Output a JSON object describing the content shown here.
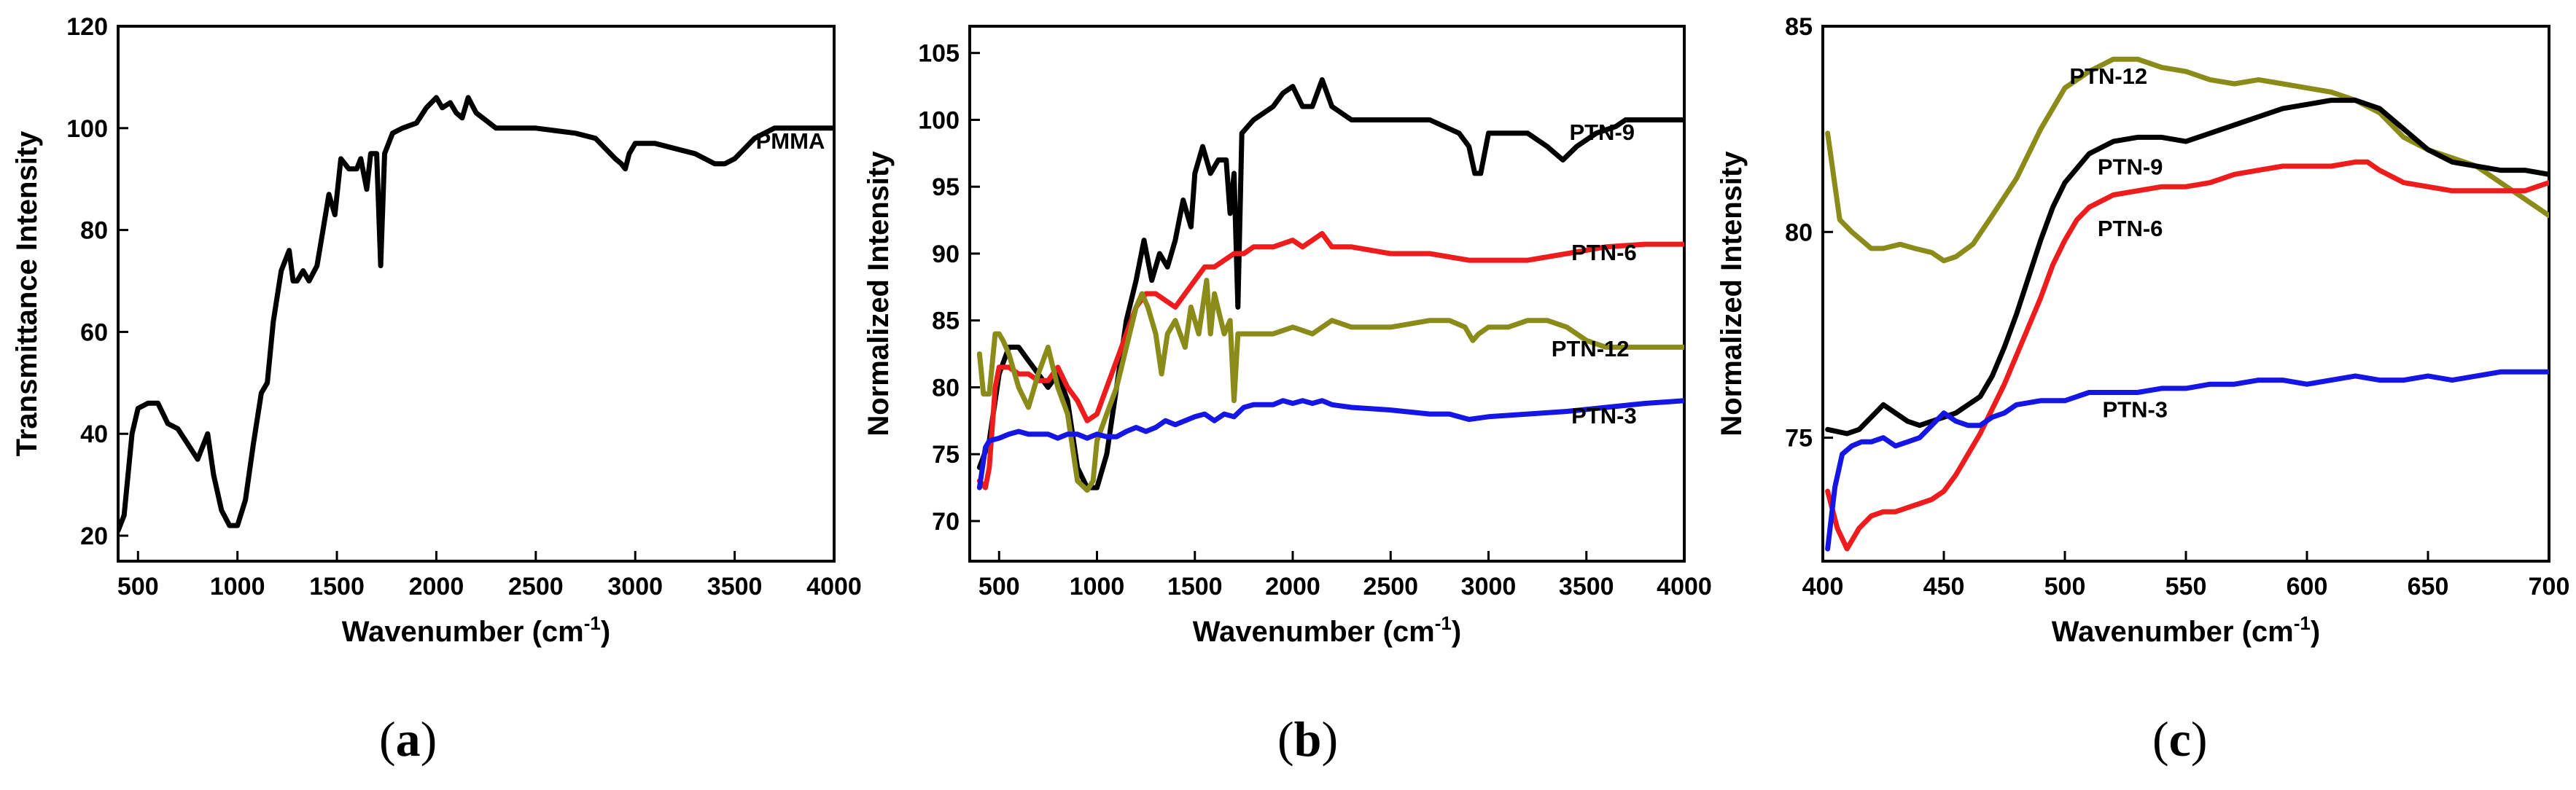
{
  "chart_data": [
    {
      "panel_label": "a",
      "type": "line",
      "xlabel": "Wavenumber (cm",
      "xlabel_sup": "-1",
      "xlabel_close": ")",
      "ylabel": "Transmittance Intensity",
      "xlim": [
        400,
        4000
      ],
      "ylim": [
        15,
        120
      ],
      "xticks": [
        500,
        1000,
        1500,
        2000,
        2500,
        3000,
        3500,
        4000
      ],
      "yticks": [
        20,
        40,
        60,
        80,
        100,
        120
      ],
      "grid": false,
      "series": [
        {
          "name": "PMMA",
          "color": "#000000",
          "label_at": [
            3780,
            96
          ],
          "x": [
            400,
            430,
            470,
            500,
            550,
            600,
            650,
            700,
            750,
            800,
            850,
            880,
            920,
            960,
            1000,
            1040,
            1080,
            1120,
            1150,
            1180,
            1220,
            1260,
            1280,
            1300,
            1330,
            1360,
            1400,
            1430,
            1460,
            1490,
            1520,
            1560,
            1600,
            1620,
            1650,
            1670,
            1700,
            1720,
            1740,
            1780,
            1830,
            1900,
            1950,
            2000,
            2030,
            2070,
            2100,
            2130,
            2160,
            2200,
            2300,
            2500,
            2700,
            2800,
            2850,
            2900,
            2930,
            2950,
            2970,
            3000,
            3100,
            3200,
            3300,
            3400,
            3450,
            3500,
            3550,
            3600,
            3700,
            3800,
            4000
          ],
          "y": [
            21,
            24,
            40,
            45,
            46,
            46,
            42,
            41,
            38,
            35,
            40,
            32,
            25,
            22,
            22,
            27,
            38,
            48,
            50,
            62,
            72,
            76,
            70,
            70,
            72,
            70,
            73,
            80,
            87,
            83,
            94,
            92,
            92,
            94,
            88,
            95,
            95,
            73,
            95,
            99,
            100,
            101,
            104,
            106,
            104,
            105,
            103,
            102,
            106,
            103,
            100,
            100,
            99,
            98,
            96,
            94,
            93,
            92,
            95,
            97,
            97,
            96,
            95,
            93,
            93,
            94,
            96,
            98,
            100,
            100,
            100
          ]
        }
      ]
    },
    {
      "panel_label": "b",
      "type": "line",
      "xlabel": "Wavenumber (cm",
      "xlabel_sup": "-1",
      "xlabel_close": ")",
      "ylabel": "Normalized Intensity",
      "xlim": [
        350,
        4000
      ],
      "ylim": [
        67,
        107
      ],
      "xticks": [
        500,
        1000,
        1500,
        2000,
        2500,
        3000,
        3500,
        4000
      ],
      "yticks": [
        70,
        75,
        80,
        85,
        90,
        95,
        100,
        105
      ],
      "grid": false,
      "series": [
        {
          "name": "PTN-9",
          "color": "#000000",
          "label_at": [
            3580,
            98.5
          ],
          "x": [
            400,
            450,
            500,
            550,
            600,
            650,
            700,
            750,
            800,
            850,
            900,
            950,
            1000,
            1050,
            1100,
            1150,
            1200,
            1240,
            1280,
            1320,
            1360,
            1400,
            1440,
            1480,
            1500,
            1540,
            1580,
            1620,
            1660,
            1680,
            1700,
            1720,
            1740,
            1800,
            1900,
            1950,
            2000,
            2050,
            2100,
            2150,
            2200,
            2300,
            2500,
            2700,
            2850,
            2900,
            2930,
            2960,
            3000,
            3100,
            3200,
            3300,
            3380,
            3450,
            3550,
            3650,
            3700,
            3800,
            4000
          ],
          "y": [
            74,
            76,
            81,
            83,
            83,
            82,
            81,
            80,
            81,
            79,
            74,
            72.5,
            72.5,
            75,
            80,
            85,
            88,
            91,
            88,
            90,
            89,
            91,
            94,
            92,
            96,
            98,
            96,
            97,
            97,
            93,
            96,
            86,
            99,
            100,
            101,
            102,
            102.5,
            101,
            101,
            103,
            101,
            100,
            100,
            100,
            99,
            98,
            96,
            96,
            99,
            99,
            99,
            98,
            97,
            98,
            99,
            99.5,
            100,
            100,
            100
          ]
        },
        {
          "name": "PTN-6",
          "color": "#ee1c1c",
          "label_at": [
            3590,
            89.5
          ],
          "x": [
            400,
            430,
            450,
            480,
            500,
            550,
            600,
            650,
            700,
            750,
            800,
            850,
            900,
            950,
            1000,
            1050,
            1100,
            1150,
            1200,
            1250,
            1300,
            1350,
            1400,
            1450,
            1500,
            1550,
            1600,
            1650,
            1700,
            1750,
            1800,
            1900,
            2000,
            2050,
            2100,
            2150,
            2200,
            2300,
            2500,
            2700,
            2900,
            3000,
            3200,
            3400,
            3600,
            3800,
            4000
          ],
          "y": [
            73,
            72.5,
            74,
            80,
            81.5,
            81.5,
            81,
            81,
            80.5,
            80.5,
            81.5,
            80,
            79,
            77.5,
            78,
            80,
            82,
            84,
            86,
            87,
            87,
            86.5,
            86,
            87,
            88,
            89,
            89,
            89.5,
            90,
            90,
            90.5,
            90.5,
            91,
            90.5,
            91,
            91.5,
            90.5,
            90.5,
            90,
            90,
            89.5,
            89.5,
            89.5,
            90,
            90.5,
            90.7,
            90.7
          ]
        },
        {
          "name": "PTN-12",
          "color": "#8b8b1a",
          "label_at": [
            3520,
            82.3
          ],
          "x": [
            400,
            420,
            450,
            480,
            500,
            520,
            550,
            600,
            650,
            700,
            750,
            800,
            850,
            880,
            900,
            950,
            980,
            1000,
            1050,
            1100,
            1150,
            1200,
            1230,
            1260,
            1300,
            1330,
            1360,
            1400,
            1450,
            1480,
            1520,
            1560,
            1580,
            1600,
            1650,
            1680,
            1700,
            1720,
            1740,
            1800,
            1900,
            2000,
            2100,
            2200,
            2300,
            2500,
            2700,
            2800,
            2880,
            2920,
            2950,
            3000,
            3100,
            3200,
            3300,
            3400,
            3500,
            3600,
            3700,
            3800,
            4000
          ],
          "y": [
            82.5,
            79.5,
            79.5,
            84,
            84,
            83.5,
            82.5,
            80,
            78.5,
            81,
            83,
            80,
            78,
            75,
            73,
            72.3,
            73,
            76,
            78,
            80,
            83,
            86,
            87,
            86,
            84,
            81,
            84,
            85,
            83,
            86,
            84,
            88,
            84,
            87,
            84,
            85,
            79,
            84,
            84,
            84,
            84,
            84.5,
            84,
            85,
            84.5,
            84.5,
            85,
            85,
            84.5,
            83.5,
            84,
            84.5,
            84.5,
            85,
            85,
            84.5,
            83.5,
            83,
            83,
            83,
            83
          ]
        },
        {
          "name": "PTN-3",
          "color": "#1515e6",
          "label_at": [
            3590,
            77.3
          ],
          "x": [
            400,
            430,
            450,
            500,
            550,
            600,
            650,
            700,
            750,
            800,
            850,
            900,
            950,
            1000,
            1050,
            1100,
            1150,
            1200,
            1250,
            1300,
            1350,
            1400,
            1450,
            1500,
            1550,
            1600,
            1650,
            1700,
            1750,
            1800,
            1900,
            1950,
            2000,
            2050,
            2100,
            2150,
            2200,
            2300,
            2500,
            2700,
            2800,
            2900,
            3000,
            3200,
            3400,
            3600,
            3800,
            4000
          ],
          "y": [
            72.5,
            75.5,
            76,
            76.2,
            76.5,
            76.7,
            76.5,
            76.5,
            76.5,
            76.2,
            76.5,
            76.5,
            76.2,
            76.5,
            76.3,
            76.3,
            76.7,
            77,
            76.7,
            77,
            77.5,
            77.2,
            77.5,
            77.8,
            78,
            77.5,
            78,
            77.8,
            78.5,
            78.7,
            78.7,
            79,
            78.8,
            79,
            78.8,
            79,
            78.7,
            78.5,
            78.3,
            78,
            78,
            77.6,
            77.8,
            78,
            78.2,
            78.5,
            78.8,
            79
          ]
        }
      ]
    },
    {
      "panel_label": "c",
      "type": "line",
      "xlabel": "Wavenumber (cm",
      "xlabel_sup": "-1",
      "xlabel_close": ")",
      "ylabel": "Normalized Intensity",
      "xlim": [
        400,
        700
      ],
      "ylim": [
        72,
        85
      ],
      "xticks": [
        400,
        450,
        500,
        550,
        600,
        650,
        700
      ],
      "yticks": [
        75,
        80,
        85
      ],
      "grid": false,
      "series": [
        {
          "name": "PTN-12",
          "color": "#8b8b1a",
          "label_at": [
            518,
            83.6
          ],
          "x": [
            402,
            407,
            412,
            420,
            425,
            432,
            438,
            445,
            450,
            455,
            462,
            470,
            480,
            490,
            500,
            510,
            520,
            530,
            540,
            550,
            560,
            570,
            580,
            590,
            600,
            610,
            620,
            630,
            640,
            650,
            660,
            670,
            680,
            690,
            700
          ],
          "y": [
            82.4,
            80.3,
            80.0,
            79.6,
            79.6,
            79.7,
            79.6,
            79.5,
            79.3,
            79.4,
            79.7,
            80.4,
            81.3,
            82.5,
            83.5,
            83.9,
            84.2,
            84.2,
            84.0,
            83.9,
            83.7,
            83.6,
            83.7,
            83.6,
            83.5,
            83.4,
            83.2,
            82.9,
            82.3,
            82.0,
            81.8,
            81.6,
            81.2,
            80.8,
            80.4
          ]
        },
        {
          "name": "PTN-9",
          "color": "#000000",
          "label_at": [
            527,
            81.4
          ],
          "x": [
            402,
            410,
            415,
            420,
            425,
            430,
            435,
            440,
            445,
            450,
            455,
            460,
            465,
            470,
            475,
            480,
            485,
            490,
            495,
            500,
            510,
            520,
            530,
            540,
            550,
            560,
            570,
            580,
            590,
            600,
            610,
            620,
            630,
            640,
            650,
            660,
            670,
            680,
            690,
            700
          ],
          "y": [
            75.2,
            75.1,
            75.2,
            75.5,
            75.8,
            75.6,
            75.4,
            75.3,
            75.4,
            75.5,
            75.6,
            75.8,
            76.0,
            76.5,
            77.2,
            78.0,
            78.9,
            79.8,
            80.6,
            81.2,
            81.9,
            82.2,
            82.3,
            82.3,
            82.2,
            82.4,
            82.6,
            82.8,
            83.0,
            83.1,
            83.2,
            83.2,
            83.0,
            82.5,
            82.0,
            81.7,
            81.6,
            81.5,
            81.5,
            81.4
          ]
        },
        {
          "name": "PTN-6",
          "color": "#ee1c1c",
          "label_at": [
            527,
            79.9
          ],
          "x": [
            402,
            406,
            410,
            415,
            420,
            425,
            430,
            435,
            440,
            445,
            450,
            455,
            460,
            465,
            470,
            475,
            480,
            485,
            490,
            495,
            500,
            505,
            510,
            520,
            530,
            540,
            550,
            560,
            570,
            580,
            590,
            600,
            610,
            620,
            625,
            630,
            640,
            650,
            660,
            670,
            680,
            690,
            700
          ],
          "y": [
            73.7,
            72.8,
            72.3,
            72.8,
            73.1,
            73.2,
            73.2,
            73.3,
            73.4,
            73.5,
            73.7,
            74.1,
            74.6,
            75.1,
            75.7,
            76.3,
            77.0,
            77.7,
            78.4,
            79.2,
            79.8,
            80.3,
            80.6,
            80.9,
            81.0,
            81.1,
            81.1,
            81.2,
            81.4,
            81.5,
            81.6,
            81.6,
            81.6,
            81.7,
            81.7,
            81.5,
            81.2,
            81.1,
            81.0,
            81.0,
            81.0,
            81.0,
            81.2
          ]
        },
        {
          "name": "PTN-3",
          "color": "#1515e6",
          "label_at": [
            529,
            75.5
          ],
          "x": [
            402,
            405,
            408,
            412,
            416,
            420,
            425,
            430,
            435,
            440,
            445,
            450,
            455,
            460,
            465,
            470,
            475,
            480,
            490,
            500,
            510,
            520,
            530,
            540,
            550,
            560,
            570,
            580,
            590,
            600,
            610,
            620,
            630,
            640,
            650,
            660,
            670,
            680,
            690,
            700
          ],
          "y": [
            72.3,
            73.8,
            74.6,
            74.8,
            74.9,
            74.9,
            75.0,
            74.8,
            74.9,
            75.0,
            75.3,
            75.6,
            75.4,
            75.3,
            75.3,
            75.5,
            75.6,
            75.8,
            75.9,
            75.9,
            76.1,
            76.1,
            76.1,
            76.2,
            76.2,
            76.3,
            76.3,
            76.4,
            76.4,
            76.3,
            76.4,
            76.5,
            76.4,
            76.4,
            76.5,
            76.4,
            76.5,
            76.6,
            76.6,
            76.6
          ]
        }
      ]
    }
  ]
}
